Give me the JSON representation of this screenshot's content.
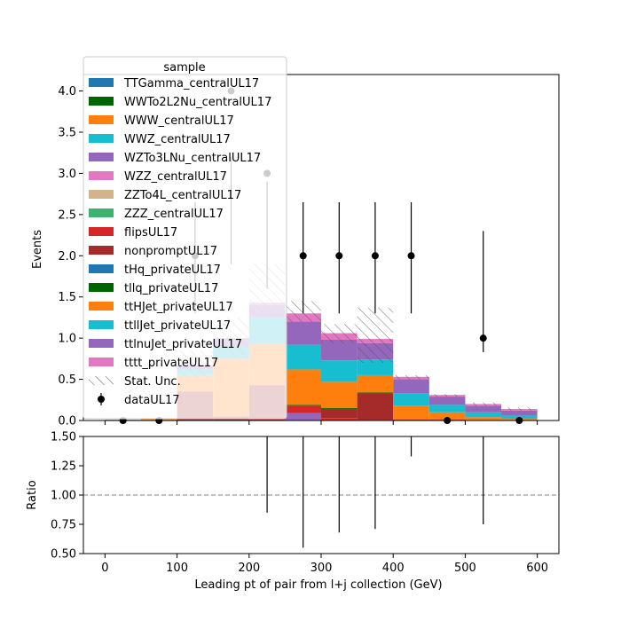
{
  "chart_data": [
    {
      "type": "bar",
      "stacked": true,
      "xlabel": "",
      "ylabel": "Events",
      "xlim": [
        -30,
        630
      ],
      "ylim": [
        0,
        4.2
      ],
      "xticks": [
        0,
        100,
        200,
        300,
        400,
        500,
        600
      ],
      "yticks": [
        0.0,
        0.5,
        1.0,
        1.5,
        2.0,
        2.5,
        3.0,
        3.5,
        4.0
      ],
      "ytick_labels": [
        "0.0",
        "0.5",
        "1.0",
        "1.5",
        "2.0",
        "2.5",
        "3.0",
        "3.5",
        "4.0"
      ],
      "bin_edges": [
        0,
        50,
        100,
        150,
        200,
        250,
        300,
        350,
        400,
        450,
        500,
        550,
        600
      ],
      "legend": {
        "title": "sample",
        "placement": "upper left"
      },
      "series": [
        {
          "name": "TTGamma_centralUL17",
          "color": "#1f77b4",
          "values": [
            0,
            0,
            0,
            0,
            0,
            0,
            0,
            0,
            0,
            0,
            0,
            0
          ]
        },
        {
          "name": "WWTo2L2Nu_centralUL17",
          "color": "#006400",
          "values": [
            0,
            0,
            0,
            0,
            0,
            0,
            0,
            0,
            0,
            0,
            0,
            0
          ]
        },
        {
          "name": "WWW_centralUL17",
          "color": "#ff7f0e",
          "values": [
            0,
            0,
            0,
            0,
            0,
            0,
            0,
            0,
            0,
            0,
            0,
            0
          ]
        },
        {
          "name": "WWZ_centralUL17",
          "color": "#17becf",
          "values": [
            0,
            0,
            0,
            0,
            0,
            0,
            0,
            0,
            0,
            0,
            0,
            0
          ]
        },
        {
          "name": "WZTo3LNu_centralUL17",
          "color": "#9467bd",
          "values": [
            0,
            0,
            0,
            0,
            0,
            0.09,
            0,
            0,
            0,
            0,
            0,
            0
          ]
        },
        {
          "name": "WZZ_centralUL17",
          "color": "#e377c2",
          "values": [
            0,
            0,
            0,
            0,
            0,
            0,
            0,
            0,
            0,
            0,
            0,
            0
          ]
        },
        {
          "name": "ZZTo4L_centralUL17",
          "color": "#d2b48c",
          "values": [
            0,
            0,
            0,
            0,
            0,
            0,
            0,
            0,
            0,
            0,
            0,
            0
          ]
        },
        {
          "name": "ZZZ_centralUL17",
          "color": "#3cb371",
          "values": [
            0,
            0,
            0,
            0,
            0,
            0,
            0,
            0,
            0,
            0,
            0,
            0
          ]
        },
        {
          "name": "flipsUL17",
          "color": "#d62728",
          "values": [
            0,
            0,
            0,
            0,
            0.03,
            0.09,
            0.03,
            0.01,
            0,
            0,
            0,
            0
          ]
        },
        {
          "name": "nonpromptUL17",
          "color": "#a52a2a",
          "values": [
            0,
            0,
            0.35,
            0.05,
            0.4,
            0,
            0.11,
            0.32,
            0,
            0,
            0,
            0
          ]
        },
        {
          "name": "tHq_privateUL17",
          "color": "#1f77b4",
          "values": [
            0,
            0,
            0,
            0,
            0,
            0,
            0,
            0,
            0,
            0,
            0,
            0
          ]
        },
        {
          "name": "tllq_privateUL17",
          "color": "#006400",
          "values": [
            0,
            0,
            0,
            0,
            0,
            0.01,
            0.01,
            0.01,
            0.01,
            0.01,
            0,
            0
          ]
        },
        {
          "name": "ttHJet_privateUL17",
          "color": "#ff7f0e",
          "values": [
            0.01,
            0.02,
            0.2,
            0.7,
            0.5,
            0.43,
            0.32,
            0.21,
            0.17,
            0.09,
            0.04,
            0.02
          ]
        },
        {
          "name": "ttllJet_privateUL17",
          "color": "#17becf",
          "values": [
            0,
            0,
            0.07,
            0.15,
            0.32,
            0.3,
            0.26,
            0.19,
            0.15,
            0.09,
            0.06,
            0.04
          ]
        },
        {
          "name": "ttlnuJet_privateUL17",
          "color": "#9467bd",
          "values": [
            0,
            0,
            0.05,
            0.1,
            0.15,
            0.28,
            0.25,
            0.2,
            0.17,
            0.1,
            0.08,
            0.06
          ]
        },
        {
          "name": "tttt_privateUL17",
          "color": "#e377c2",
          "values": [
            0,
            0,
            0,
            0,
            0.03,
            0.1,
            0.08,
            0.05,
            0.03,
            0.02,
            0.02,
            0.02
          ]
        }
      ],
      "stat_unc": {
        "name": "Stat. Unc.",
        "low": [
          0.01,
          0.02,
          0.5,
          0.75,
          1.3,
          1.2,
          0.94,
          0.7,
          0.5,
          0.29,
          0.18,
          0.12
        ],
        "high": [
          0.01,
          0.03,
          0.85,
          1.25,
          1.9,
          1.45,
          1.17,
          1.37,
          0.55,
          0.32,
          0.22,
          0.16
        ]
      },
      "data_points": {
        "name": "dataUL17",
        "x": [
          25,
          75,
          125,
          175,
          225,
          275,
          325,
          375,
          425,
          475,
          525,
          575
        ],
        "y": [
          0,
          0,
          2,
          4,
          3,
          2,
          2,
          2,
          2,
          0,
          1,
          0
        ],
        "err_low": [
          0,
          0,
          1.3,
          1.9,
          1.6,
          1.3,
          1.3,
          1.3,
          1.3,
          0,
          0.83,
          0
        ],
        "err_high": [
          0,
          0,
          2.65,
          3.2,
          2.9,
          2.65,
          2.65,
          2.65,
          2.65,
          0,
          2.3,
          0
        ]
      }
    },
    {
      "type": "scatter",
      "xlabel": "Leading pt of pair from l+j collection (GeV)",
      "ylabel": "Ratio",
      "xlim": [
        -30,
        630
      ],
      "ylim": [
        0.5,
        1.5
      ],
      "xticks": [
        0,
        100,
        200,
        300,
        400,
        500,
        600
      ],
      "yticks": [
        0.5,
        0.75,
        1.0,
        1.25,
        1.5
      ],
      "ytick_labels": [
        "0.50",
        "0.75",
        "1.00",
        "1.25",
        "1.50"
      ],
      "reference_line": 1.0,
      "error_bars": [
        {
          "x": 225,
          "low": 0.85,
          "high": 1.5
        },
        {
          "x": 275,
          "low": 0.55,
          "high": 1.5
        },
        {
          "x": 325,
          "low": 0.68,
          "high": 1.5
        },
        {
          "x": 375,
          "low": 0.71,
          "high": 1.5
        },
        {
          "x": 425,
          "low": 1.33,
          "high": 1.5
        },
        {
          "x": 525,
          "low": 0.75,
          "high": 1.5
        }
      ]
    }
  ]
}
